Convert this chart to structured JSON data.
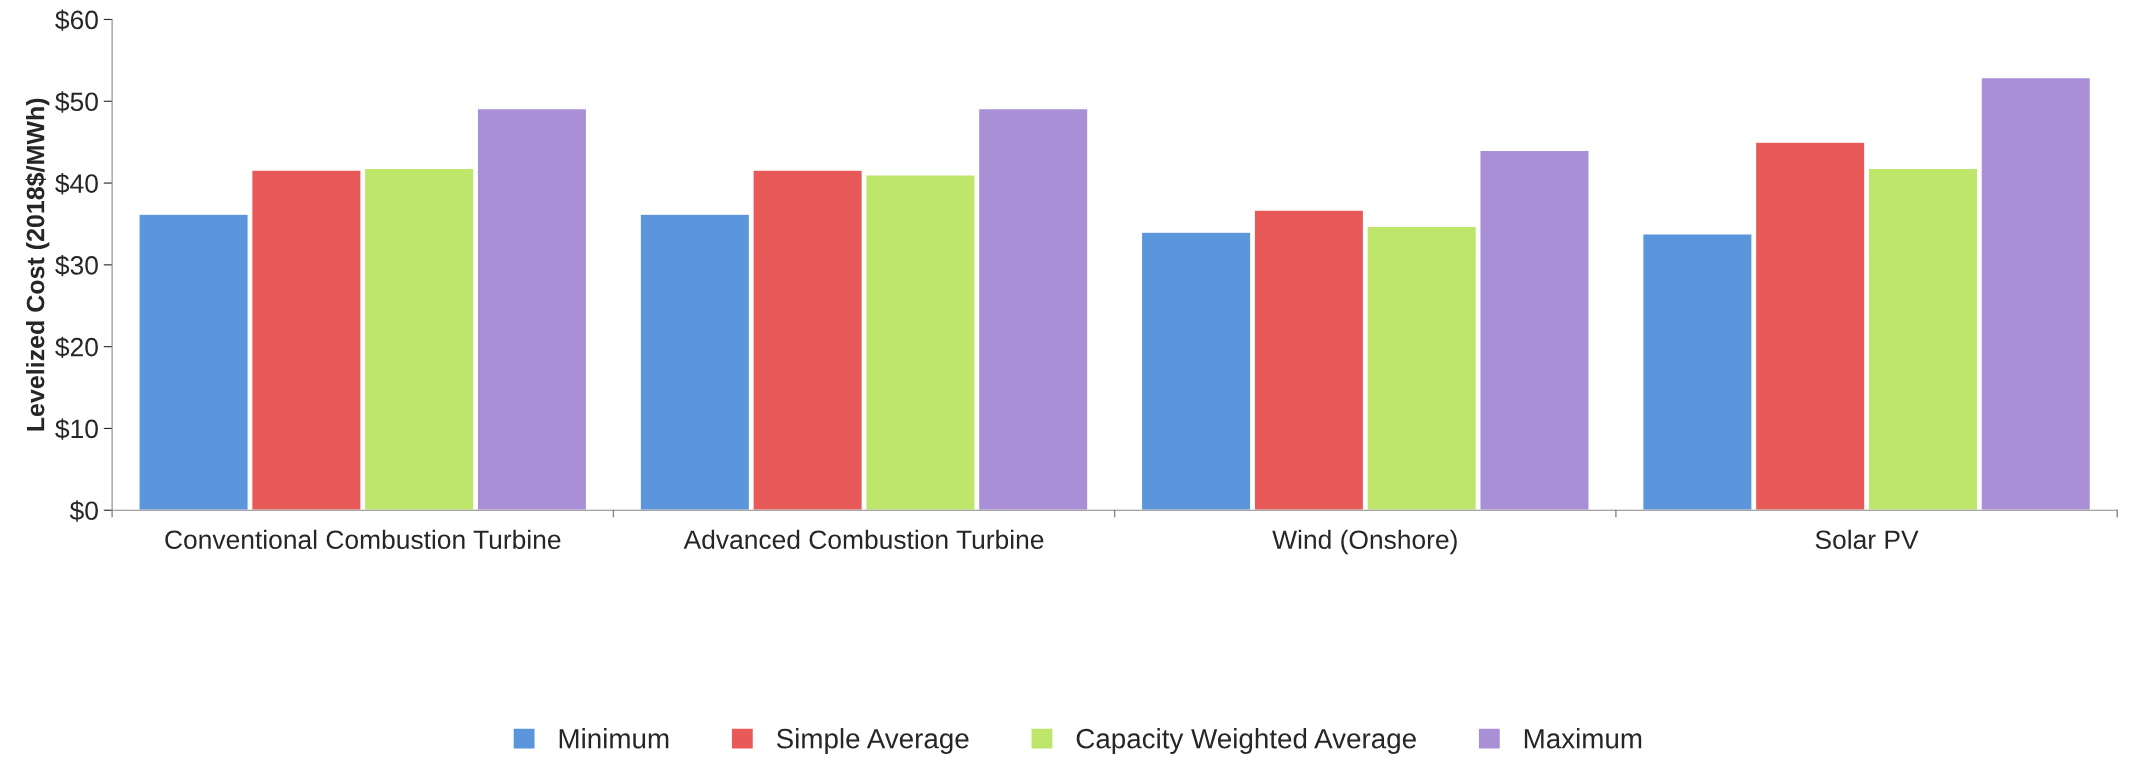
{
  "chart_data": {
    "type": "bar",
    "ylabel": "Levelized Cost (2018$/MWh)",
    "categories": [
      "Conventional Combustion Turbine",
      "Advanced Combustion Turbine",
      "Wind (Onshore)",
      "Solar PV"
    ],
    "series": [
      {
        "name": "Minimum",
        "color": "#5b95dc",
        "values": [
          36.2,
          36.2,
          34.0,
          33.8
        ]
      },
      {
        "name": "Simple Average",
        "color": "#e85a58",
        "values": [
          41.6,
          41.6,
          36.7,
          45.0
        ]
      },
      {
        "name": "Capacity Weighted Average",
        "color": "#bde66a",
        "values": [
          41.8,
          41.0,
          34.7,
          41.8
        ]
      },
      {
        "name": "Maximum",
        "color": "#a98fd6",
        "values": [
          49.1,
          49.1,
          44.0,
          52.9
        ]
      }
    ],
    "ylim": [
      0,
      60
    ],
    "yticks": [
      {
        "value": 0,
        "label": "$0"
      },
      {
        "value": 10,
        "label": "$10"
      },
      {
        "value": 20,
        "label": "$20"
      },
      {
        "value": 30,
        "label": "$30"
      },
      {
        "value": 40,
        "label": "$40"
      },
      {
        "value": 50,
        "label": "$50"
      },
      {
        "value": 60,
        "label": "$60"
      }
    ],
    "legend": "bottom",
    "grid": false
  }
}
